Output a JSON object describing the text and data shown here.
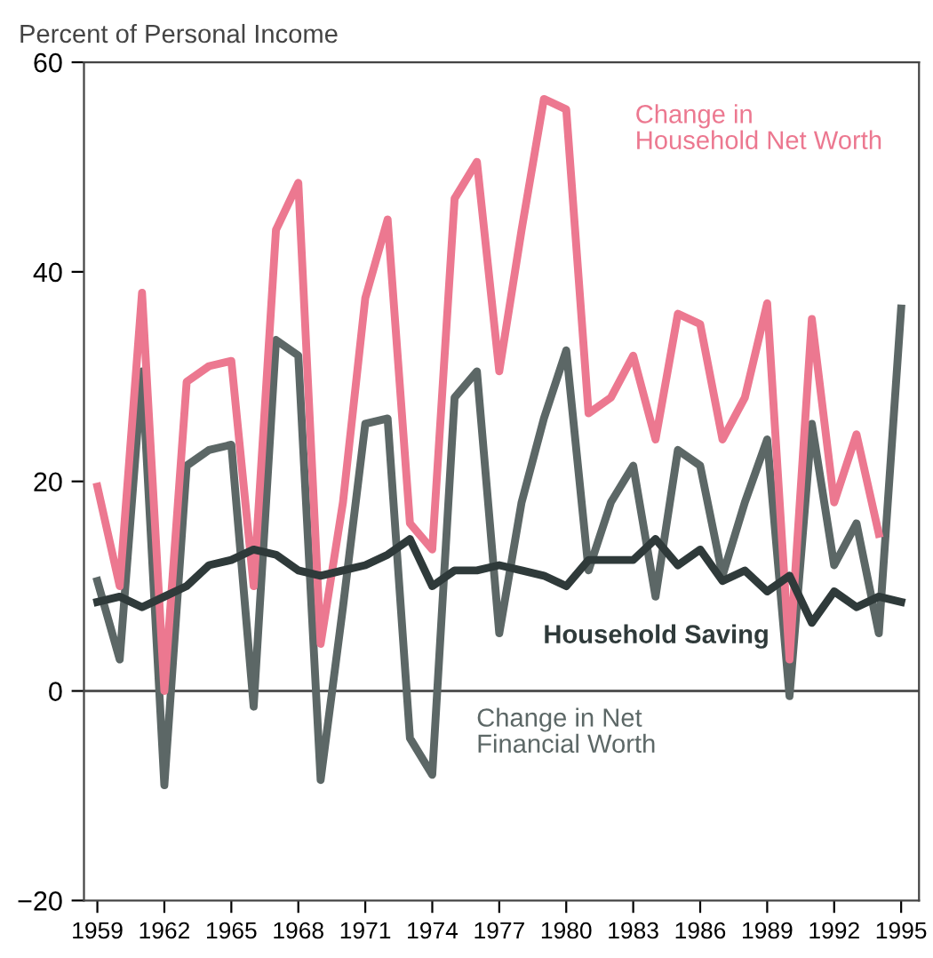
{
  "chart_data": {
    "type": "line",
    "ylabel": "Percent of Personal Income",
    "x": [
      1959,
      1960,
      1961,
      1962,
      1963,
      1964,
      1965,
      1966,
      1967,
      1968,
      1969,
      1970,
      1971,
      1972,
      1973,
      1974,
      1975,
      1976,
      1977,
      1978,
      1979,
      1980,
      1981,
      1982,
      1983,
      1984,
      1985,
      1986,
      1987,
      1988,
      1989,
      1990,
      1991,
      1992,
      1993,
      1994,
      1995
    ],
    "series": [
      {
        "name": "Change in Net Financial Worth",
        "color": "#5c6766",
        "values": [
          10.5,
          3,
          30.5,
          -9,
          21.5,
          23,
          23.5,
          -1.5,
          33.5,
          32,
          -8.5,
          8,
          25.5,
          26,
          -4.5,
          -8,
          28,
          30.5,
          5.5,
          18,
          26,
          32.5,
          11.5,
          18,
          21.5,
          9,
          23,
          21.5,
          11,
          18,
          24,
          -0.5,
          25.5,
          12,
          16,
          5.5,
          36.5
        ]
      },
      {
        "name": "Change in Household Net Worth",
        "color": "#ec7890",
        "values": [
          19.5,
          10,
          38,
          0,
          29.5,
          31,
          31.5,
          10,
          44,
          48.5,
          4.5,
          18,
          37.5,
          45,
          16,
          13.5,
          47,
          50.5,
          30.5,
          44,
          56.5,
          55.5,
          26.5,
          28,
          32,
          24,
          36,
          35,
          24,
          28,
          37,
          3,
          35.5,
          18,
          24.5,
          15,
          null
        ]
      },
      {
        "name": "Household Saving",
        "color": "#2f3a3a",
        "values": [
          8.5,
          9,
          8,
          9,
          10,
          12,
          12.5,
          13.5,
          13,
          11.5,
          11,
          11.5,
          12,
          13,
          14.5,
          10,
          11.5,
          11.5,
          12,
          11.5,
          11,
          10,
          12.5,
          12.5,
          12.5,
          14.5,
          12,
          13.5,
          10.5,
          11.5,
          9.5,
          11,
          6.5,
          9.5,
          8,
          9,
          8.5
        ]
      }
    ],
    "xlim": [
      1958.4,
      1995.8
    ],
    "xticks": [
      1959,
      1962,
      1965,
      1968,
      1971,
      1974,
      1977,
      1980,
      1983,
      1986,
      1989,
      1992,
      1995
    ],
    "ylim": [
      -20,
      60
    ],
    "yticks": [
      -20,
      0,
      20,
      40,
      60
    ],
    "ref_lines": [
      {
        "axis": "y",
        "value": 0,
        "color": "#555555"
      }
    ],
    "grid": false,
    "legend": false,
    "marker": "none",
    "line_style": "solid"
  }
}
